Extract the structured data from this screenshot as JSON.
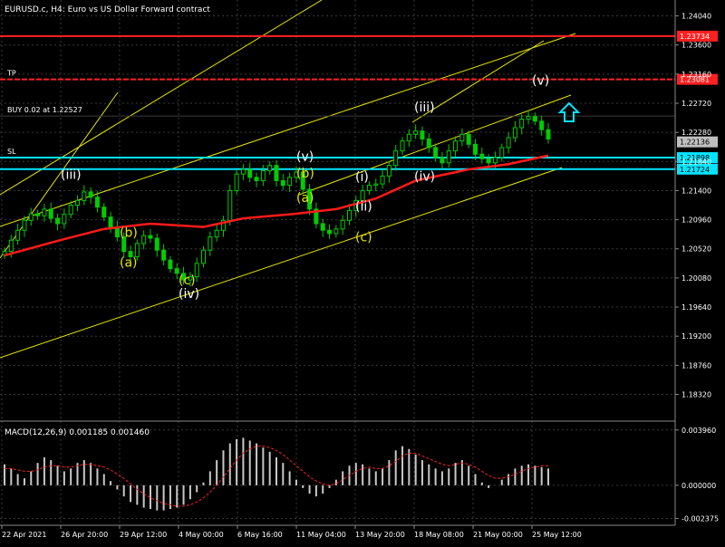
{
  "header": {
    "title": "EURUSD.c, H4:  Euro vs US Dollar Forward contract"
  },
  "colors": {
    "background": "#000000",
    "grid": "#3a3a3a",
    "candle": "#00cc00",
    "ma": "#ff1a1a",
    "channel": "#e6e600",
    "level_red": "#ff2020",
    "level_cyan": "#00e5ff",
    "macd_hist": "#c8c8c8",
    "macd_signal": "#ff2020",
    "wave_white": "#ffffff",
    "wave_yellow": "#e6e600",
    "arrow": "#00e5ff"
  },
  "chart_data": [
    {
      "type": "line",
      "name": "price",
      "x_labels": [
        "22 Apr 2021",
        "26 Apr 20:00",
        "29 Apr 12:00",
        "4 May 00:00",
        "6 May 16:00",
        "11 May 04:00",
        "13 May 20:00",
        "18 May 08:00",
        "21 May 00:00",
        "25 May 12:00"
      ],
      "y_ticks": [
        "1.24040",
        "1.23600",
        "1.23160",
        "1.22720",
        "1.22280",
        "1.21840",
        "1.21400",
        "1.20960",
        "1.20520",
        "1.20080",
        "1.19640",
        "1.19200",
        "1.18760",
        "1.18320"
      ],
      "ylim": [
        1.1793,
        1.2428
      ],
      "closes": [
        1.2048,
        1.2065,
        1.208,
        1.2095,
        1.2105,
        1.2102,
        1.2112,
        1.2098,
        1.209,
        1.2104,
        1.2118,
        1.2125,
        1.2138,
        1.213,
        1.2115,
        1.21,
        1.2085,
        1.207,
        1.2048,
        1.204,
        1.206,
        1.2072,
        1.2068,
        1.205,
        1.2035,
        1.2022,
        1.2015,
        1.2005,
        1.201,
        1.203,
        1.205,
        1.207,
        1.208,
        1.2095,
        1.214,
        1.2165,
        1.2172,
        1.216,
        1.2155,
        1.217,
        1.2178,
        1.2155,
        1.2148,
        1.216,
        1.2168,
        1.2142,
        1.2112,
        1.209,
        1.208,
        1.2075,
        1.2082,
        1.2095,
        1.211,
        1.2125,
        1.214,
        1.2148,
        1.215,
        1.2162,
        1.2178,
        1.22,
        1.2215,
        1.2225,
        1.223,
        1.2218,
        1.2205,
        1.219,
        1.2182,
        1.22,
        1.2215,
        1.2225,
        1.221,
        1.2195,
        1.2188,
        1.2182,
        1.219,
        1.2205,
        1.222,
        1.2235,
        1.2248,
        1.2252,
        1.2245,
        1.2232,
        1.2218
      ],
      "moving_average": {
        "start": 1.2042,
        "points": [
          [
            0,
            1.2042
          ],
          [
            8,
            1.2064
          ],
          [
            15,
            1.2082
          ],
          [
            22,
            1.209
          ],
          [
            30,
            1.2085
          ],
          [
            36,
            1.2098
          ],
          [
            44,
            1.2105
          ],
          [
            50,
            1.2112
          ],
          [
            56,
            1.2128
          ],
          [
            62,
            1.2155
          ],
          [
            70,
            1.2172
          ],
          [
            76,
            1.218
          ],
          [
            82,
            1.2193
          ]
        ]
      },
      "price_levels": [
        {
          "label": "",
          "value": 1.23734,
          "color": "#ff2020",
          "tag": "1.23734"
        },
        {
          "label": "TP",
          "value": 1.23081,
          "color": "#ff2020",
          "tag": "1.23081"
        },
        {
          "label": "BUY 0.02 at 1.22527",
          "value": 1.22527,
          "color": "#3a3a3a",
          "tag": ""
        },
        {
          "label": "SL",
          "value": 1.21898,
          "color": "#00e5ff",
          "tag": "1.21898"
        },
        {
          "label": "",
          "value": 1.21724,
          "color": "#00e5ff",
          "tag": "1.21724"
        }
      ],
      "current_price_tag": "1.22136",
      "wave_labels": [
        {
          "text": "(iii)",
          "color": "white",
          "x_label": "26 Apr 20:00",
          "value": 1.2158
        },
        {
          "text": "(a)",
          "color": "yellow",
          "x_label": "29 Apr 12:00",
          "value": 1.2025
        },
        {
          "text": "(b)",
          "color": "yellow",
          "x_label": "29 Apr 12:00",
          "value": 1.207
        },
        {
          "text": "(c)",
          "color": "yellow",
          "x_label": "4 May 00:00",
          "value": 1.1998
        },
        {
          "text": "(iv)",
          "color": "white",
          "x_label": "4 May 00:00",
          "value": 1.1978
        },
        {
          "text": "(v)",
          "color": "white",
          "x_label": "11 May 04:00",
          "value": 1.2185
        },
        {
          "text": "(b)",
          "color": "yellow",
          "x_label": "11 May 04:00",
          "value": 1.216
        },
        {
          "text": "(a)",
          "color": "yellow",
          "x_label": "11 May 04:00",
          "value": 1.2123
        },
        {
          "text": "(c)",
          "color": "yellow",
          "x_label": "13 May 20:00",
          "value": 1.2063
        },
        {
          "text": "(i)",
          "color": "white",
          "x_label": "13 May 20:00",
          "value": 1.2154
        },
        {
          "text": "(ii)",
          "color": "white",
          "x_label": "13 May 20:00",
          "value": 1.211
        },
        {
          "text": "(iii)",
          "color": "white",
          "x_label": "18 May 08:00",
          "value": 1.226
        },
        {
          "text": "(iv)",
          "color": "white",
          "x_label": "18 May 08:00",
          "value": 1.2155
        },
        {
          "text": "(v)",
          "color": "white",
          "x_label": "25 May 12:00",
          "value": 1.23
        }
      ]
    },
    {
      "type": "bar",
      "name": "MACD",
      "legend": "MACD(12,26,9) 0.001185 0.001460",
      "y_ticks": [
        "0.003960",
        "0.000000",
        "-0.002375"
      ],
      "ylim": [
        -0.0028,
        0.0044
      ],
      "histogram": [
        0.0015,
        0.0012,
        0.0008,
        0.0005,
        0.001,
        0.0016,
        0.002,
        0.0018,
        0.0014,
        0.001,
        0.0012,
        0.0016,
        0.0018,
        0.0016,
        0.0012,
        0.0008,
        0.0003,
        -0.0003,
        -0.0008,
        -0.0012,
        -0.0014,
        -0.0016,
        -0.0017,
        -0.0018,
        -0.0018,
        -0.0017,
        -0.0016,
        -0.0014,
        -0.001,
        -0.0005,
        0.0002,
        0.001,
        0.0018,
        0.0025,
        0.003,
        0.0033,
        0.0034,
        0.0032,
        0.003,
        0.0027,
        0.0024,
        0.002,
        0.0016,
        0.001,
        0.0004,
        -0.0002,
        -0.0006,
        -0.0008,
        -0.0006,
        -0.0002,
        0.0004,
        0.001,
        0.0014,
        0.0016,
        0.0015,
        0.0012,
        0.001,
        0.0012,
        0.0018,
        0.0025,
        0.0028,
        0.0026,
        0.0022,
        0.0018,
        0.0015,
        0.0012,
        0.001,
        0.0012,
        0.0016,
        0.0018,
        0.0014,
        0.0008,
        0.0002,
        -0.0002,
        0.0,
        0.0004,
        0.0008,
        0.0012,
        0.0014,
        0.0015,
        0.0014,
        0.0013,
        0.0012
      ],
      "signal": [
        0.0012,
        0.0012,
        0.0011,
        0.001,
        0.001,
        0.0011,
        0.0013,
        0.0014,
        0.0014,
        0.0013,
        0.0013,
        0.0014,
        0.0015,
        0.0015,
        0.0014,
        0.0013,
        0.0011,
        0.0008,
        0.0005,
        0.0001,
        -0.0003,
        -0.0006,
        -0.0009,
        -0.0011,
        -0.0013,
        -0.0014,
        -0.0015,
        -0.0015,
        -0.0014,
        -0.0012,
        -0.0009,
        -0.0005,
        0.0,
        0.0006,
        0.0012,
        0.0018,
        0.0023,
        0.0026,
        0.0028,
        0.0028,
        0.0027,
        0.0025,
        0.0022,
        0.0018,
        0.0014,
        0.001,
        0.0006,
        0.0003,
        0.0001,
        0.0,
        0.0001,
        0.0004,
        0.0007,
        0.001,
        0.0012,
        0.0013,
        0.0012,
        0.0012,
        0.0014,
        0.0017,
        0.0021,
        0.0023,
        0.0023,
        0.0021,
        0.0019,
        0.0017,
        0.0015,
        0.0014,
        0.0015,
        0.0016,
        0.0015,
        0.0013,
        0.001,
        0.0007,
        0.0005,
        0.0005,
        0.0006,
        0.0008,
        0.001,
        0.0012,
        0.0013,
        0.0014,
        0.0014
      ]
    }
  ]
}
